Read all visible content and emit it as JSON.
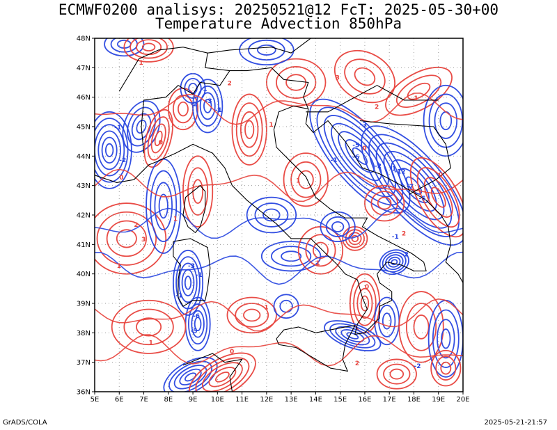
{
  "title": {
    "line1": "ECMWF0200 analisys: 20250521@12 FcT: 2025-05-30+00",
    "line2": "Temperature Advection 850hPa"
  },
  "axes": {
    "lat_labels": [
      "48N",
      "47N",
      "46N",
      "45N",
      "44N",
      "43N",
      "42N",
      "41N",
      "40N",
      "39N",
      "38N",
      "37N",
      "36N"
    ],
    "lon_labels": [
      "5E",
      "6E",
      "7E",
      "8E",
      "9E",
      "10E",
      "11E",
      "12E",
      "13E",
      "14E",
      "15E",
      "16E",
      "17E",
      "18E",
      "19E",
      "20E"
    ],
    "lat_range": [
      36,
      48
    ],
    "lon_range": [
      5,
      20
    ],
    "grid": "dotted"
  },
  "colors": {
    "warm": "#e8423c",
    "cold": "#2846e0",
    "coast": "#000000",
    "grid": "#9a9a9a"
  },
  "contour_labels": {
    "warm": [
      "1",
      "0",
      "2",
      "3",
      "1",
      "0",
      "1",
      "2",
      "1",
      "0",
      "1",
      "3",
      "2",
      "1",
      "0",
      "1",
      "2",
      "0",
      "1",
      "1",
      "2",
      "0"
    ],
    "cold": [
      "-1",
      "-2",
      "-1",
      "-3",
      "-1",
      "-2",
      "-6",
      "-5",
      "-3",
      "-1",
      "-2",
      "-1",
      "-12",
      "-7",
      "-5",
      "-1",
      "-2",
      "-3",
      "-1",
      "-6",
      "-1",
      "-5",
      "-2"
    ]
  },
  "footer": {
    "credit": "GrADS/COLA",
    "timestamp": "2025-05-21-21:57"
  }
}
